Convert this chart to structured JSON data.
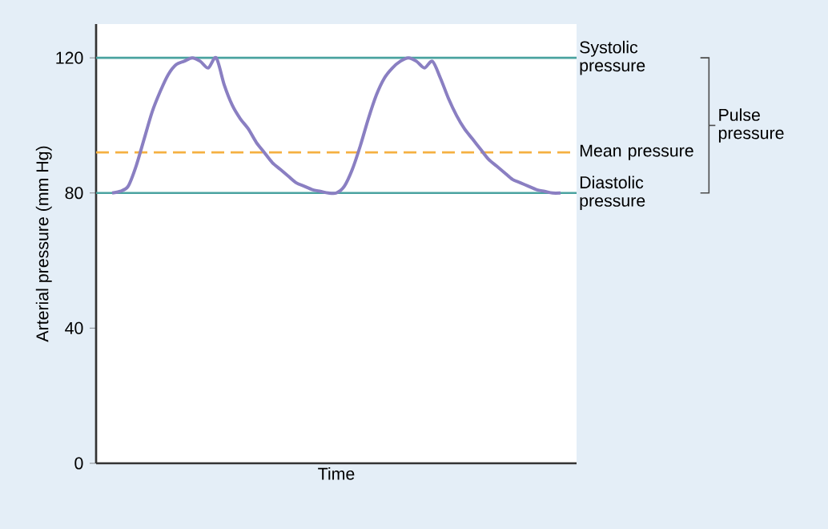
{
  "chart_data": {
    "type": "line",
    "xlabel": "Time",
    "ylabel": "Arterial pressure (mm Hg)",
    "categories": [
      null,
      null,
      null,
      null,
      null,
      null,
      null,
      null,
      null,
      null,
      null,
      null,
      null,
      null,
      null,
      null,
      null,
      null,
      null,
      null,
      null,
      null,
      null,
      null,
      null,
      null,
      null,
      null,
      null,
      null,
      null,
      null,
      null,
      null,
      null,
      null,
      null,
      null,
      null,
      null,
      null,
      null,
      null,
      null,
      null,
      null,
      null,
      null,
      null,
      null,
      null,
      null,
      null,
      null,
      null,
      null,
      null
    ],
    "series": [
      {
        "color": "#8a7fc2",
        "values": [
          80,
          80.5,
          82,
          88,
          96,
          104,
          110,
          115,
          118,
          119,
          120,
          119,
          117,
          120,
          112,
          106,
          102,
          99,
          95,
          92,
          89,
          87,
          85,
          83,
          82,
          81,
          80.5,
          80,
          80,
          82,
          87,
          94,
          102,
          109,
          114,
          117,
          119,
          120,
          119,
          117,
          119,
          114,
          108,
          103,
          99,
          96,
          93,
          90,
          88,
          86,
          84,
          83,
          82,
          81,
          80.5,
          80,
          80
        ]
      }
    ],
    "ylim": [
      0,
      130
    ],
    "yticks": [
      0,
      40,
      80,
      120
    ],
    "tick_labels": "y",
    "grid": false,
    "marker": "none",
    "line_style": "solid",
    "ref_lines": [
      {
        "axis": "y",
        "value": 120,
        "label": "Systolic pressure",
        "color": "#4aa3a0",
        "line_style": "solid"
      },
      {
        "axis": "y",
        "value": 92,
        "label": "Mean pressure",
        "color": "#f5b041",
        "line_style": "dashed"
      },
      {
        "axis": "y",
        "value": 80,
        "label": "Diastolic pressure",
        "color": "#4aa3a0",
        "line_style": "solid"
      }
    ],
    "annotations": [
      "Pulse pressure"
    ]
  }
}
